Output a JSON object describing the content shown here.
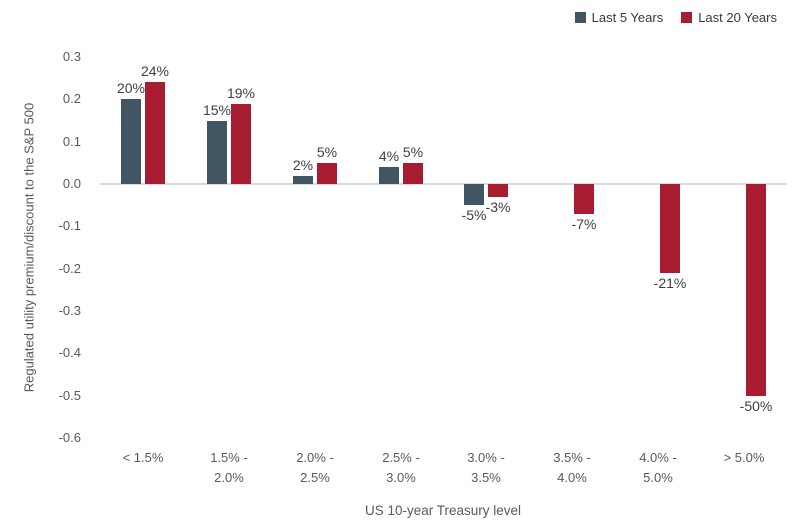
{
  "chart_data": {
    "type": "bar",
    "title": "",
    "xlabel": "US 10-year Treasury level",
    "ylabel": "Regulated utility premium/discount to the S&P 500",
    "categories": [
      "< 1.5%",
      "1.5% - 2.0%",
      "2.0% - 2.5%",
      "2.5% - 3.0%",
      "3.0% - 3.5%",
      "3.5% - 4.0%",
      "4.0% - 5.0%",
      "> 5.0%"
    ],
    "category_tick_lines": [
      "< 1.5%",
      "1.5% -\n2.0%",
      "2.0% -\n2.5%",
      "2.5% -\n3.0%",
      "3.0% -\n3.5%",
      "3.5% -\n4.0%",
      "4.0% -\n5.0%",
      "> 5.0%"
    ],
    "series": [
      {
        "name": "Last 5 Years",
        "color": "#425563",
        "values": [
          0.2,
          0.15,
          0.02,
          0.04,
          -0.05,
          null,
          null,
          null
        ],
        "labels": [
          "20%",
          "15%",
          "2%",
          "4%",
          "-5%",
          "",
          "",
          ""
        ]
      },
      {
        "name": "Last 20 Years",
        "color": "#A71C30",
        "values": [
          0.24,
          0.19,
          0.05,
          0.05,
          -0.03,
          -0.07,
          -0.21,
          -0.5
        ],
        "labels": [
          "24%",
          "19%",
          "5%",
          "5%",
          "-3%",
          "-7%",
          "-21%",
          "-50%"
        ]
      }
    ],
    "y_tick_labels": [
      "0.3",
      "0.2",
      "0.1",
      "0.0",
      "-0.1",
      "-0.2",
      "-0.3",
      "-0.4",
      "-0.5",
      "-0.6"
    ],
    "y_ticks": [
      0.3,
      0.2,
      0.1,
      0.0,
      -0.1,
      -0.2,
      -0.3,
      -0.4,
      -0.5,
      -0.6
    ],
    "ylim": [
      -0.6,
      0.3
    ],
    "grid": "zero-line-only",
    "legend_position": "top-right",
    "colors": {
      "axis_text": "#595959",
      "data_label": "#404040",
      "zero_line": "#D9D9D9",
      "background": "#FFFFFF"
    }
  }
}
